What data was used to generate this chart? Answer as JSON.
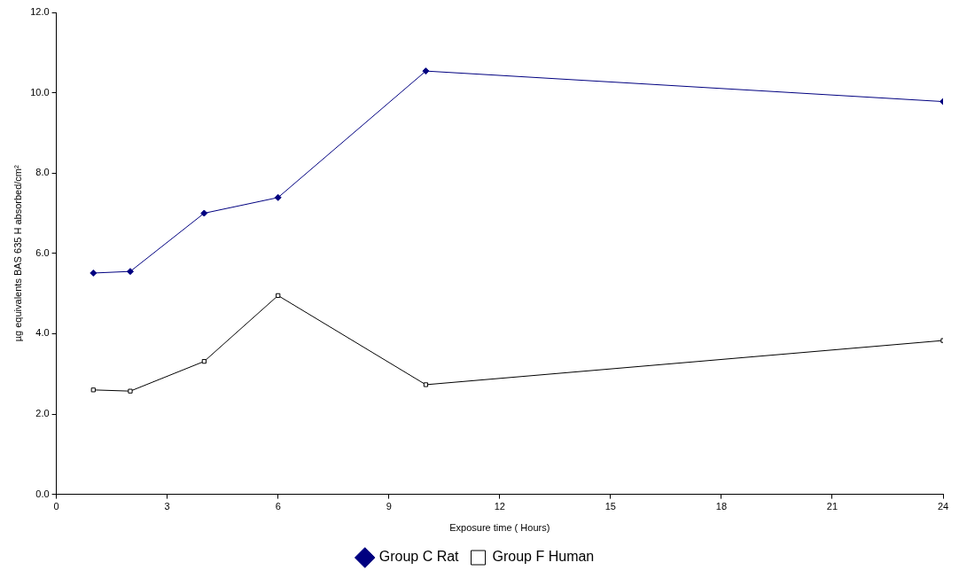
{
  "chart_data": {
    "type": "line",
    "xlabel": "Exposure time ( Hours)",
    "ylabel": "µg equivalents BAS 635 H absorbed/cm²",
    "x": [
      1,
      2,
      4,
      6,
      10,
      24
    ],
    "series": [
      {
        "name": "Group C Rat",
        "color": "#000080",
        "marker": "diamond",
        "values": [
          5.51,
          5.55,
          7.0,
          7.39,
          10.54,
          9.78
        ]
      },
      {
        "name": "Group F Human",
        "color": "#000000",
        "marker": "square",
        "values": [
          2.6,
          2.57,
          3.31,
          4.95,
          2.73,
          3.83
        ]
      }
    ],
    "xlim": [
      0,
      24
    ],
    "xticks": [
      0,
      3,
      6,
      9,
      12,
      15,
      18,
      21,
      24
    ],
    "ylim": [
      0,
      12
    ],
    "yticks": [
      {
        "value": 0,
        "label": "0.0"
      },
      {
        "value": 2,
        "label": "2.0"
      },
      {
        "value": 4,
        "label": "4.0"
      },
      {
        "value": 6,
        "label": "6.0"
      },
      {
        "value": 8,
        "label": "8.0"
      },
      {
        "value": 10,
        "label": "10.0"
      },
      {
        "value": 12,
        "label": "12.0"
      }
    ],
    "grid": false,
    "legend": "bottom",
    "line_style": "solid"
  }
}
